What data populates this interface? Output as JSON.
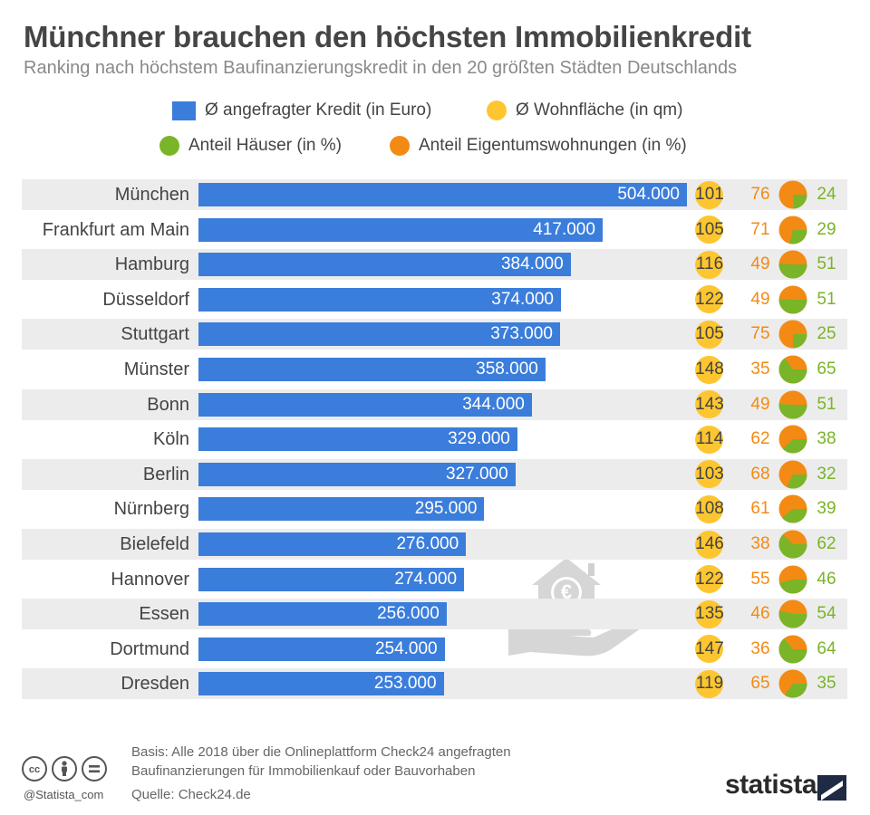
{
  "title": "Münchner brauchen den höchsten Immobilienkredit",
  "subtitle": "Ranking nach höchstem Baufinanzierungskredit in den 20 größten Städten Deutschlands",
  "legend": {
    "credit": "Ø angefragter Kredit (in Euro)",
    "living_space": "Ø Wohnfläche (in qm)",
    "houses": "Anteil Häuser (in %)",
    "apartments": "Anteil Eigentumswohnungen (in %)"
  },
  "colors": {
    "bar": "#3b7ddb",
    "living_space": "#fdc630",
    "houses": "#7ab428",
    "apartments": "#f38a14",
    "row_bg": "#ececec"
  },
  "chart_data": {
    "type": "bar",
    "orientation": "horizontal",
    "xlim": [
      0,
      504000
    ],
    "categories": [
      "München",
      "Frankfurt am Main",
      "Hamburg",
      "Düsseldorf",
      "Stuttgart",
      "Münster",
      "Bonn",
      "Köln",
      "Berlin",
      "Nürnberg",
      "Bielefeld",
      "Hannover",
      "Essen",
      "Dortmund",
      "Dresden"
    ],
    "series": [
      {
        "name": "Ø angefragter Kredit (in Euro)",
        "values": [
          504000,
          417000,
          384000,
          374000,
          373000,
          358000,
          344000,
          329000,
          327000,
          295000,
          276000,
          274000,
          256000,
          254000,
          253000
        ],
        "labels": [
          "504.000",
          "417.000",
          "384.000",
          "374.000",
          "373.000",
          "358.000",
          "344.000",
          "329.000",
          "327.000",
          "295.000",
          "276.000",
          "274.000",
          "256.000",
          "254.000",
          "253.000"
        ]
      },
      {
        "name": "Ø Wohnfläche (in qm)",
        "values": [
          101,
          105,
          116,
          122,
          105,
          148,
          143,
          114,
          103,
          108,
          146,
          122,
          135,
          147,
          119
        ]
      },
      {
        "name": "Anteil Eigentumswohnungen (in %)",
        "values": [
          76,
          71,
          49,
          49,
          75,
          35,
          49,
          62,
          68,
          61,
          38,
          55,
          46,
          36,
          65
        ]
      },
      {
        "name": "Anteil Häuser (in %)",
        "values": [
          24,
          29,
          51,
          51,
          25,
          65,
          51,
          38,
          32,
          39,
          62,
          46,
          54,
          64,
          35
        ]
      }
    ]
  },
  "footer": {
    "basis_line1": "Basis: Alle 2018 über die Onlineplattform Check24 angefragten",
    "basis_line2": "Baufinanzierungen für Immobilienkauf oder Bauvorhaben",
    "source": "Quelle: Check24.de",
    "handle": "@Statista_com",
    "brand": "statista"
  },
  "icons": {
    "cc": "creative-commons-icon",
    "by": "attribution-person-icon",
    "nd": "no-derivatives-icon",
    "watermark": "hand-holding-house-euro-icon"
  }
}
